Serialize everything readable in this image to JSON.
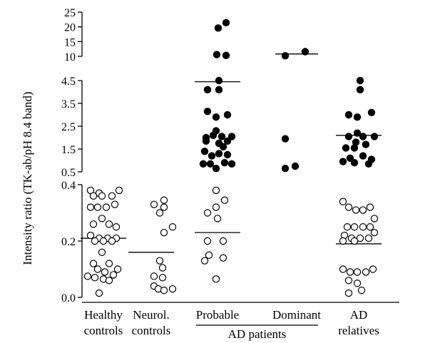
{
  "chart_data": {
    "type": "scatter",
    "ylabel": "Intensity ratio (TK-ab/pH 8.4 band)",
    "y_axis_segments": [
      {
        "range": [
          0.0,
          0.4
        ],
        "ticks": [
          0.0,
          0.2,
          0.4
        ],
        "tick_labels": [
          "0.0",
          "0.2",
          "0.4"
        ]
      },
      {
        "range": [
          0.5,
          4.5
        ],
        "ticks": [
          0.5,
          1.5,
          2.5,
          3.5,
          4.5
        ],
        "tick_labels": [
          "0.5",
          "1.5",
          "2.5",
          "3.5",
          "4.5"
        ]
      },
      {
        "range": [
          10,
          25
        ],
        "ticks": [
          10,
          15,
          20,
          25
        ],
        "tick_labels": [
          "10",
          "15",
          "20",
          "25"
        ]
      }
    ],
    "categories": [
      {
        "key": "healthy",
        "label_lines": [
          "Healthy",
          "controls"
        ]
      },
      {
        "key": "neurol",
        "label_lines": [
          "Neurol.",
          "controls"
        ]
      },
      {
        "key": "probable",
        "label_lines": [
          "Probable"
        ]
      },
      {
        "key": "dominant",
        "label_lines": [
          "Dominant"
        ]
      },
      {
        "key": "relatives",
        "label_lines": [
          "AD",
          "relatives"
        ]
      }
    ],
    "group_label": {
      "text": "AD patients",
      "spans": [
        "probable",
        "dominant"
      ]
    },
    "medians": [
      {
        "category": "healthy",
        "value": 0.21
      },
      {
        "category": "neurol",
        "value": 0.16
      },
      {
        "category": "probable",
        "value": 0.23
      },
      {
        "category": "probable",
        "value": 4.45
      },
      {
        "category": "dominant",
        "value": 10.8
      },
      {
        "category": "relatives",
        "value": 0.19
      },
      {
        "category": "relatives",
        "value": 2.1
      }
    ],
    "points": [
      {
        "category": "healthy",
        "value": 0.38,
        "dx": -18,
        "filled": false
      },
      {
        "category": "healthy",
        "value": 0.37,
        "dx": -6,
        "filled": false
      },
      {
        "category": "healthy",
        "value": 0.38,
        "dx": 22,
        "filled": false
      },
      {
        "category": "healthy",
        "value": 0.36,
        "dx": -14,
        "filled": false
      },
      {
        "category": "healthy",
        "value": 0.36,
        "dx": -2,
        "filled": false
      },
      {
        "category": "healthy",
        "value": 0.36,
        "dx": 12,
        "filled": false
      },
      {
        "category": "healthy",
        "value": 0.32,
        "dx": -18,
        "filled": false
      },
      {
        "category": "healthy",
        "value": 0.32,
        "dx": -8,
        "filled": false
      },
      {
        "category": "healthy",
        "value": 0.32,
        "dx": 4,
        "filled": false
      },
      {
        "category": "healthy",
        "value": 0.33,
        "dx": 16,
        "filled": false
      },
      {
        "category": "healthy",
        "value": 0.28,
        "dx": -2,
        "filled": false
      },
      {
        "category": "healthy",
        "value": 0.26,
        "dx": -14,
        "filled": false
      },
      {
        "category": "healthy",
        "value": 0.26,
        "dx": 8,
        "filled": false
      },
      {
        "category": "healthy",
        "value": 0.25,
        "dx": 18,
        "filled": false
      },
      {
        "category": "healthy",
        "value": 0.22,
        "dx": -18,
        "filled": false
      },
      {
        "category": "healthy",
        "value": 0.21,
        "dx": -6,
        "filled": false
      },
      {
        "category": "healthy",
        "value": 0.21,
        "dx": 6,
        "filled": false
      },
      {
        "category": "healthy",
        "value": 0.21,
        "dx": 18,
        "filled": false
      },
      {
        "category": "healthy",
        "value": 0.2,
        "dx": -12,
        "filled": false
      },
      {
        "category": "healthy",
        "value": 0.2,
        "dx": 0,
        "filled": false
      },
      {
        "category": "healthy",
        "value": 0.2,
        "dx": 12,
        "filled": false
      },
      {
        "category": "healthy",
        "value": 0.16,
        "dx": -2,
        "filled": false
      },
      {
        "category": "healthy",
        "value": 0.12,
        "dx": -14,
        "filled": false
      },
      {
        "category": "healthy",
        "value": 0.12,
        "dx": 8,
        "filled": false
      },
      {
        "category": "healthy",
        "value": 0.1,
        "dx": 20,
        "filled": false
      },
      {
        "category": "healthy",
        "value": 0.1,
        "dx": -8,
        "filled": false
      },
      {
        "category": "healthy",
        "value": 0.09,
        "dx": 2,
        "filled": false
      },
      {
        "category": "healthy",
        "value": 0.075,
        "dx": -22,
        "filled": false
      },
      {
        "category": "healthy",
        "value": 0.08,
        "dx": 14,
        "filled": false
      },
      {
        "category": "healthy",
        "value": 0.07,
        "dx": -12,
        "filled": false
      },
      {
        "category": "healthy",
        "value": 0.065,
        "dx": 0,
        "filled": false
      },
      {
        "category": "healthy",
        "value": 0.06,
        "dx": 8,
        "filled": false
      },
      {
        "category": "healthy",
        "value": 0.015,
        "dx": -6,
        "filled": false
      },
      {
        "category": "neurol",
        "value": 0.345,
        "dx": 18,
        "filled": false
      },
      {
        "category": "neurol",
        "value": 0.33,
        "dx": 4,
        "filled": false
      },
      {
        "category": "neurol",
        "value": 0.32,
        "dx": 18,
        "filled": false
      },
      {
        "category": "neurol",
        "value": 0.3,
        "dx": 12,
        "filled": false
      },
      {
        "category": "neurol",
        "value": 0.25,
        "dx": 30,
        "filled": false
      },
      {
        "category": "neurol",
        "value": 0.23,
        "dx": 18,
        "filled": false
      },
      {
        "category": "neurol",
        "value": 0.13,
        "dx": 12,
        "filled": false
      },
      {
        "category": "neurol",
        "value": 0.105,
        "dx": 16,
        "filled": false
      },
      {
        "category": "neurol",
        "value": 0.075,
        "dx": 4,
        "filled": false
      },
      {
        "category": "neurol",
        "value": 0.07,
        "dx": 16,
        "filled": false
      },
      {
        "category": "neurol",
        "value": 0.04,
        "dx": 4,
        "filled": false
      },
      {
        "category": "neurol",
        "value": 0.03,
        "dx": 10,
        "filled": false
      },
      {
        "category": "neurol",
        "value": 0.025,
        "dx": 18,
        "filled": false
      },
      {
        "category": "neurol",
        "value": 0.03,
        "dx": 30,
        "filled": false
      },
      {
        "category": "probable",
        "value": 21.4,
        "dx": 12,
        "filled": true
      },
      {
        "category": "probable",
        "value": 19.6,
        "dx": 1,
        "filled": true
      },
      {
        "category": "probable",
        "value": 10.6,
        "dx": -1,
        "filled": true
      },
      {
        "category": "probable",
        "value": 10.3,
        "dx": 12,
        "filled": true
      },
      {
        "category": "probable",
        "value": 4.9,
        "dx": 2,
        "filled": true
      },
      {
        "category": "probable",
        "value": 4.1,
        "dx": -14,
        "filled": true
      },
      {
        "category": "probable",
        "value": 4.1,
        "dx": 2,
        "filled": true
      },
      {
        "category": "probable",
        "value": 3.15,
        "dx": -14,
        "filled": true
      },
      {
        "category": "probable",
        "value": 3.0,
        "dx": 14,
        "filled": true
      },
      {
        "category": "probable",
        "value": 2.9,
        "dx": -2,
        "filled": true
      },
      {
        "category": "probable",
        "value": 2.3,
        "dx": -2,
        "filled": true
      },
      {
        "category": "probable",
        "value": 2.0,
        "dx": -16,
        "filled": true
      },
      {
        "category": "probable",
        "value": 2.1,
        "dx": -6,
        "filled": true
      },
      {
        "category": "probable",
        "value": 2.05,
        "dx": 6,
        "filled": true
      },
      {
        "category": "probable",
        "value": 2.05,
        "dx": 20,
        "filled": true
      },
      {
        "category": "probable",
        "value": 1.85,
        "dx": -16,
        "filled": true
      },
      {
        "category": "probable",
        "value": 1.75,
        "dx": 2,
        "filled": true
      },
      {
        "category": "probable",
        "value": 1.85,
        "dx": 14,
        "filled": true
      },
      {
        "category": "probable",
        "value": 1.6,
        "dx": 8,
        "filled": true
      },
      {
        "category": "probable",
        "value": 1.4,
        "dx": -18,
        "filled": true
      },
      {
        "category": "probable",
        "value": 1.3,
        "dx": 2,
        "filled": true
      },
      {
        "category": "probable",
        "value": 1.2,
        "dx": -8,
        "filled": true
      },
      {
        "category": "probable",
        "value": 1.25,
        "dx": 14,
        "filled": true
      },
      {
        "category": "probable",
        "value": 0.85,
        "dx": -20,
        "filled": true
      },
      {
        "category": "probable",
        "value": 0.85,
        "dx": -10,
        "filled": true
      },
      {
        "category": "probable",
        "value": 0.9,
        "dx": 10,
        "filled": true
      },
      {
        "category": "probable",
        "value": 0.85,
        "dx": 20,
        "filled": true
      },
      {
        "category": "probable",
        "value": 0.65,
        "dx": -2,
        "filled": true
      },
      {
        "category": "probable",
        "value": 0.38,
        "dx": -2,
        "filled": false
      },
      {
        "category": "probable",
        "value": 0.345,
        "dx": 10,
        "filled": false
      },
      {
        "category": "probable",
        "value": 0.32,
        "dx": -2,
        "filled": false
      },
      {
        "category": "probable",
        "value": 0.3,
        "dx": -14,
        "filled": false
      },
      {
        "category": "probable",
        "value": 0.28,
        "dx": 0,
        "filled": false
      },
      {
        "category": "probable",
        "value": 0.2,
        "dx": -14,
        "filled": false
      },
      {
        "category": "probable",
        "value": 0.2,
        "dx": 8,
        "filled": false
      },
      {
        "category": "probable",
        "value": 0.15,
        "dx": -12,
        "filled": false
      },
      {
        "category": "probable",
        "value": 0.14,
        "dx": 8,
        "filled": false
      },
      {
        "category": "probable",
        "value": 0.13,
        "dx": -18,
        "filled": false
      },
      {
        "category": "probable",
        "value": 0.065,
        "dx": -2,
        "filled": false
      },
      {
        "category": "dominant",
        "value": 11.6,
        "dx": 12,
        "filled": true
      },
      {
        "category": "dominant",
        "value": 10.2,
        "dx": -16,
        "filled": true
      },
      {
        "category": "dominant",
        "value": 1.95,
        "dx": -16,
        "filled": true
      },
      {
        "category": "dominant",
        "value": 0.75,
        "dx": -2,
        "filled": true
      },
      {
        "category": "dominant",
        "value": 0.65,
        "dx": -16,
        "filled": true
      },
      {
        "category": "relatives",
        "value": 4.7,
        "dx": 2,
        "filled": true
      },
      {
        "category": "relatives",
        "value": 4.1,
        "dx": 2,
        "filled": true
      },
      {
        "category": "relatives",
        "value": 3.1,
        "dx": 18,
        "filled": true
      },
      {
        "category": "relatives",
        "value": 3.0,
        "dx": -14,
        "filled": true
      },
      {
        "category": "relatives",
        "value": 2.9,
        "dx": -2,
        "filled": true
      },
      {
        "category": "relatives",
        "value": 2.2,
        "dx": -2,
        "filled": true
      },
      {
        "category": "relatives",
        "value": 2.05,
        "dx": -14,
        "filled": true
      },
      {
        "category": "relatives",
        "value": 2.05,
        "dx": 6,
        "filled": true
      },
      {
        "category": "relatives",
        "value": 2.05,
        "dx": 22,
        "filled": true
      },
      {
        "category": "relatives",
        "value": 1.8,
        "dx": -4,
        "filled": true
      },
      {
        "category": "relatives",
        "value": 1.7,
        "dx": 10,
        "filled": true
      },
      {
        "category": "relatives",
        "value": 1.55,
        "dx": -18,
        "filled": true
      },
      {
        "category": "relatives",
        "value": 1.55,
        "dx": -6,
        "filled": true
      },
      {
        "category": "relatives",
        "value": 1.2,
        "dx": 6,
        "filled": true
      },
      {
        "category": "relatives",
        "value": 1.1,
        "dx": -12,
        "filled": true
      },
      {
        "category": "relatives",
        "value": 1.05,
        "dx": 18,
        "filled": true
      },
      {
        "category": "relatives",
        "value": 0.95,
        "dx": -22,
        "filled": true
      },
      {
        "category": "relatives",
        "value": 0.9,
        "dx": -6,
        "filled": true
      },
      {
        "category": "relatives",
        "value": 0.85,
        "dx": 14,
        "filled": true
      },
      {
        "category": "relatives",
        "value": 0.34,
        "dx": -22,
        "filled": false
      },
      {
        "category": "relatives",
        "value": 0.32,
        "dx": -14,
        "filled": false
      },
      {
        "category": "relatives",
        "value": 0.31,
        "dx": -4,
        "filled": false
      },
      {
        "category": "relatives",
        "value": 0.31,
        "dx": 6,
        "filled": false
      },
      {
        "category": "relatives",
        "value": 0.32,
        "dx": 16,
        "filled": false
      },
      {
        "category": "relatives",
        "value": 0.28,
        "dx": 22,
        "filled": false
      },
      {
        "category": "relatives",
        "value": 0.25,
        "dx": -16,
        "filled": false
      },
      {
        "category": "relatives",
        "value": 0.25,
        "dx": -6,
        "filled": false
      },
      {
        "category": "relatives",
        "value": 0.25,
        "dx": 6,
        "filled": false
      },
      {
        "category": "relatives",
        "value": 0.25,
        "dx": 16,
        "filled": false
      },
      {
        "category": "relatives",
        "value": 0.22,
        "dx": -20,
        "filled": false
      },
      {
        "category": "relatives",
        "value": 0.21,
        "dx": -10,
        "filled": false
      },
      {
        "category": "relatives",
        "value": 0.21,
        "dx": 2,
        "filled": false
      },
      {
        "category": "relatives",
        "value": 0.21,
        "dx": 14,
        "filled": false
      },
      {
        "category": "relatives",
        "value": 0.23,
        "dx": 22,
        "filled": false
      },
      {
        "category": "relatives",
        "value": 0.2,
        "dx": -22,
        "filled": false
      },
      {
        "category": "relatives",
        "value": 0.2,
        "dx": -6,
        "filled": false
      },
      {
        "category": "relatives",
        "value": 0.1,
        "dx": -22,
        "filled": false
      },
      {
        "category": "relatives",
        "value": 0.09,
        "dx": -12,
        "filled": false
      },
      {
        "category": "relatives",
        "value": 0.09,
        "dx": -2,
        "filled": false
      },
      {
        "category": "relatives",
        "value": 0.09,
        "dx": 10,
        "filled": false
      },
      {
        "category": "relatives",
        "value": 0.1,
        "dx": 20,
        "filled": false
      },
      {
        "category": "relatives",
        "value": 0.06,
        "dx": -14,
        "filled": false
      },
      {
        "category": "relatives",
        "value": 0.05,
        "dx": -2,
        "filled": false
      },
      {
        "category": "relatives",
        "value": 0.025,
        "dx": 4,
        "filled": false
      },
      {
        "category": "relatives",
        "value": 0.015,
        "dx": -14,
        "filled": false
      }
    ]
  }
}
